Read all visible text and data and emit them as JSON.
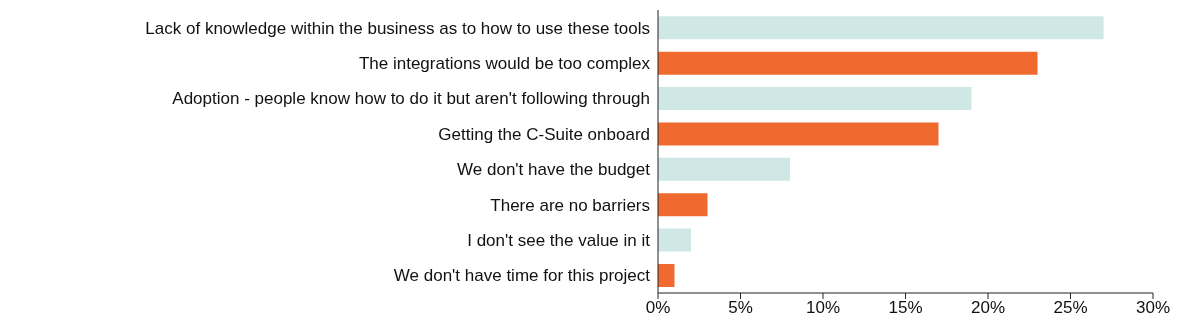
{
  "chart_data": {
    "type": "bar",
    "orientation": "horizontal",
    "categories": [
      "Lack of knowledge within the business as to how to use these tools",
      "The integrations would be too complex",
      "Adoption - people know how to do it but aren't following through",
      "Getting the C-Suite onboard",
      "We don't have the budget",
      "There are no barriers",
      "I don't see the value in it",
      "We don't have time for this project"
    ],
    "values": [
      27,
      23,
      19,
      17,
      8,
      3,
      2,
      1
    ],
    "colors": [
      "#cfe8e6",
      "#f06a30",
      "#cfe8e6",
      "#f06a30",
      "#cfe8e6",
      "#f06a30",
      "#cfe8e6",
      "#f06a30"
    ],
    "xlim": [
      0,
      30
    ],
    "xticks": [
      {
        "value": 0,
        "label": "0%"
      },
      {
        "value": 5,
        "label": "5%"
      },
      {
        "value": 10,
        "label": "10%"
      },
      {
        "value": 15,
        "label": "15%"
      },
      {
        "value": 20,
        "label": "20%"
      },
      {
        "value": 25,
        "label": "25%"
      },
      {
        "value": 30,
        "label": "30%"
      }
    ],
    "grid": false
  }
}
